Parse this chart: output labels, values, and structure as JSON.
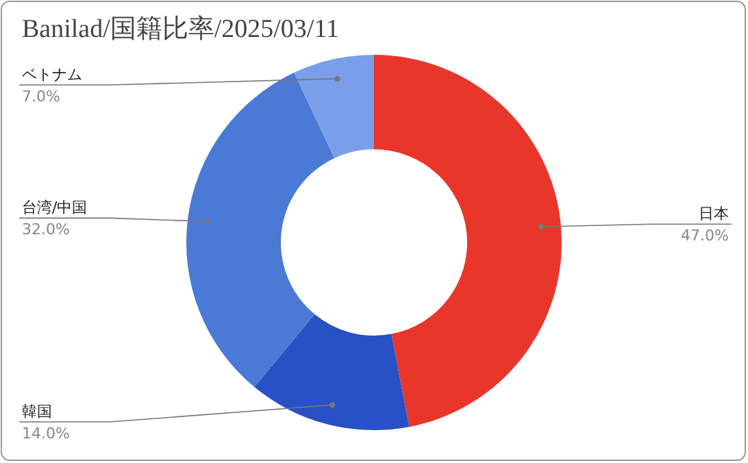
{
  "chart_data": {
    "type": "donut",
    "title": "Banilad/国籍比率/2025/03/11",
    "categories": [
      "日本",
      "韓国",
      "台湾/中国",
      "ベトナム"
    ],
    "values": [
      47,
      14,
      32,
      7
    ],
    "value_labels": [
      "47.0%",
      "14.0%",
      "32.0%",
      "7.0%"
    ],
    "colors": [
      "#e8372a",
      "#2851c6",
      "#4a79d6",
      "#7b9ee8"
    ]
  }
}
